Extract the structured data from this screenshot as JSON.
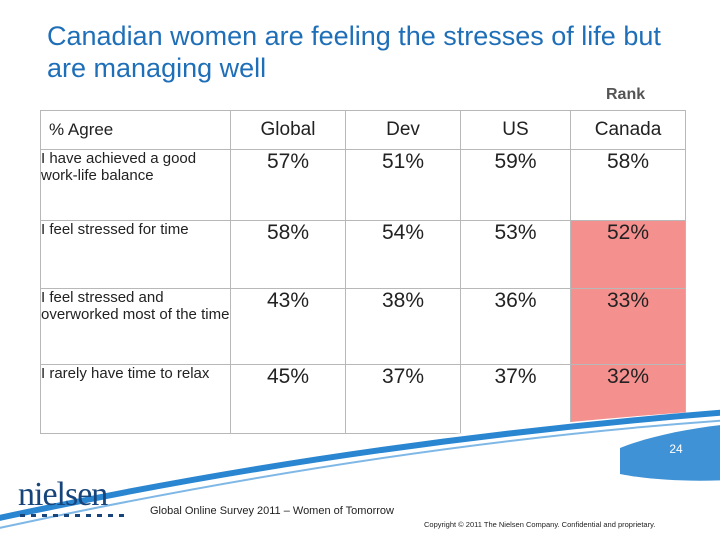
{
  "title": "Canadian women are feeling the stresses of life but are managing well",
  "rank_label": "Rank",
  "table": {
    "headers": [
      "% Agree",
      "Global",
      "Dev",
      "US",
      "Canada"
    ],
    "rows": [
      {
        "label": "I have achieved a good work-life balance",
        "values": [
          "57%",
          "51%",
          "59%",
          "58%"
        ],
        "highlight": false
      },
      {
        "label": "I feel stressed for time",
        "values": [
          "58%",
          "54%",
          "53%",
          "52%"
        ],
        "highlight": true
      },
      {
        "label": "I feel stressed and overworked most of the time",
        "values": [
          "43%",
          "38%",
          "36%",
          "33%"
        ],
        "highlight": true
      },
      {
        "label": "I rarely have time to relax",
        "values": [
          "45%",
          "37%",
          "37%",
          "32%"
        ],
        "highlight": true
      }
    ]
  },
  "page_number": "24",
  "logo": "nielsen",
  "footer_survey": "Global Online Survey 2011 – Women of Tomorrow",
  "copyright": "Copyright © 2011 The Nielsen Company. Confidential and proprietary.",
  "colors": {
    "title": "#1f6fb8",
    "highlight": "#f4908e",
    "swoosh": "#2a86d1"
  }
}
